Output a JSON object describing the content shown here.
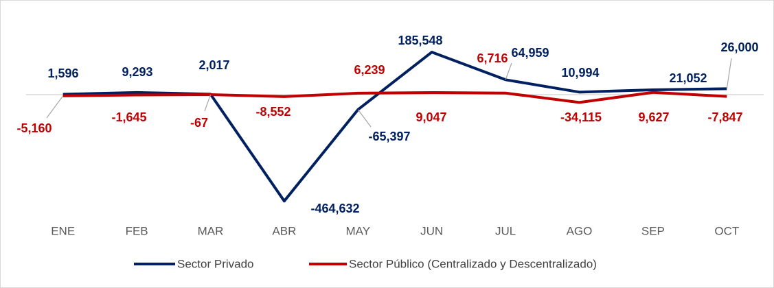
{
  "chart_data": {
    "type": "line",
    "categories": [
      "ENE",
      "FEB",
      "MAR",
      "ABR",
      "MAY",
      "JUN",
      "JUL",
      "AGO",
      "SEP",
      "OCT"
    ],
    "series": [
      {
        "name": "Sector Privado",
        "color": "#002060",
        "values": [
          1596,
          9293,
          2017,
          -464632,
          -65397,
          185548,
          64959,
          10994,
          21052,
          26000
        ],
        "value_labels": [
          "1,596",
          "9,293",
          "2,017",
          "-464,632",
          "-65,397",
          "185,548",
          "64,959",
          "10,994",
          "21,052",
          "26,000"
        ]
      },
      {
        "name": "Sector Público (Centralizado y Descentralizado)",
        "color": "#c00000",
        "values": [
          -5160,
          -1645,
          -67,
          -8552,
          6239,
          9047,
          6716,
          -34115,
          9627,
          -7847
        ],
        "value_labels": [
          "-5,160",
          "-1,645",
          "-67",
          "-8,552",
          "6,239",
          "9,047",
          "6,716",
          "-34,115",
          "9,627",
          "-7,847"
        ]
      }
    ],
    "ylim": [
      -500000,
      250000
    ]
  }
}
